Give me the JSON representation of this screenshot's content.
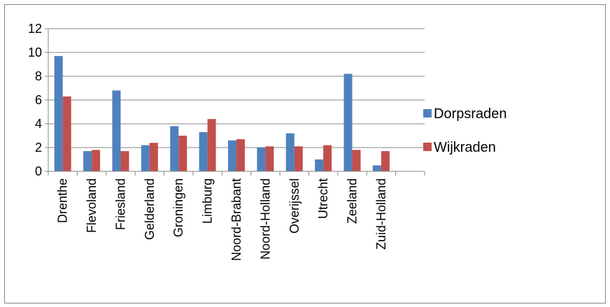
{
  "chart_data": {
    "type": "bar",
    "title": "",
    "xlabel": "",
    "ylabel": "",
    "ylim": [
      0,
      12
    ],
    "ytick_step": 2,
    "grid": "horizontal",
    "legend_position": "right",
    "categories": [
      "Drenthe",
      "Flevoland",
      "Friesland",
      "Gelderland",
      "Groningen",
      "Limburg",
      "Noord-Brabant",
      "Noord-Holland",
      "Overijssel",
      "Utrecht",
      "Zeeland",
      "Zuid-Holland",
      ""
    ],
    "series": [
      {
        "name": "Dorpsraden",
        "color": "#4f81bd",
        "values": [
          9.7,
          1.7,
          6.8,
          2.2,
          3.8,
          3.3,
          2.6,
          2.0,
          3.2,
          1.0,
          8.2,
          0.5,
          null
        ]
      },
      {
        "name": "Wijkraden",
        "color": "#c0504d",
        "values": [
          6.3,
          1.8,
          1.7,
          2.4,
          3.0,
          4.4,
          2.7,
          2.1,
          2.1,
          2.2,
          1.8,
          1.7,
          null
        ]
      }
    ]
  }
}
